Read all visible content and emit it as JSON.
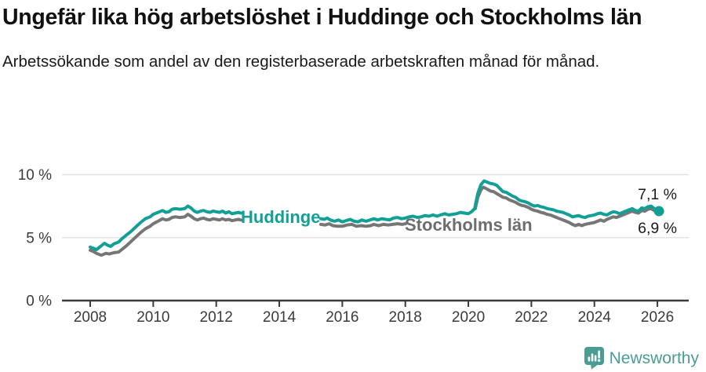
{
  "chart_data": {
    "type": "line",
    "title": "Ungefär lika hög arbetslöshet i Huddinge och Stockholms län",
    "subtitle": "Arbetssökande som andel av den registerbaserade arbetskraften månad för månad.",
    "grid": "horizontal",
    "legend_position": "inline-labels",
    "x_axis": {
      "ticks": [
        2008,
        2010,
        2012,
        2014,
        2016,
        2018,
        2020,
        2022,
        2024,
        2026
      ],
      "range": [
        2007.3,
        2027.0
      ]
    },
    "y_axis": {
      "unit": "%",
      "range": [
        0,
        10
      ],
      "ticks": [
        {
          "value": 0,
          "label": "0 %"
        },
        {
          "value": 5,
          "label": "5 %"
        },
        {
          "value": 10,
          "label": "10 %"
        }
      ]
    },
    "axis_color": "#3a3a3a",
    "grid_color": "#e3e3e3",
    "value_label_color": "#1a1a1a",
    "series": [
      {
        "name": "Huddinge",
        "color": "#12a096",
        "label_color": "#12a096",
        "end_label": "7,1 %",
        "end_value": 7.1,
        "end_dot": true,
        "segments": [
          [
            [
              2008.0,
              4.25
            ],
            [
              2008.1,
              4.15
            ],
            [
              2008.2,
              4.05
            ],
            [
              2008.3,
              4.25
            ],
            [
              2008.45,
              4.55
            ],
            [
              2008.55,
              4.4
            ],
            [
              2008.65,
              4.3
            ],
            [
              2008.75,
              4.5
            ],
            [
              2008.9,
              4.65
            ],
            [
              2009.0,
              4.9
            ],
            [
              2009.15,
              5.2
            ],
            [
              2009.3,
              5.5
            ],
            [
              2009.45,
              5.85
            ],
            [
              2009.6,
              6.2
            ],
            [
              2009.75,
              6.5
            ],
            [
              2009.9,
              6.65
            ],
            [
              2010.0,
              6.85
            ],
            [
              2010.15,
              7.0
            ],
            [
              2010.3,
              7.15
            ],
            [
              2010.4,
              7.0
            ],
            [
              2010.5,
              7.05
            ],
            [
              2010.6,
              7.25
            ],
            [
              2010.7,
              7.3
            ],
            [
              2010.85,
              7.25
            ],
            [
              2011.0,
              7.3
            ],
            [
              2011.1,
              7.5
            ],
            [
              2011.2,
              7.35
            ],
            [
              2011.3,
              7.1
            ],
            [
              2011.4,
              7.0
            ],
            [
              2011.5,
              7.1
            ],
            [
              2011.6,
              7.15
            ],
            [
              2011.7,
              7.05
            ],
            [
              2011.8,
              7.0
            ],
            [
              2011.9,
              7.1
            ],
            [
              2012.0,
              7.05
            ],
            [
              2012.1,
              7.0
            ],
            [
              2012.2,
              7.1
            ],
            [
              2012.3,
              6.95
            ],
            [
              2012.4,
              7.05
            ],
            [
              2012.5,
              6.9
            ],
            [
              2012.6,
              6.95
            ],
            [
              2012.7,
              7.0
            ],
            [
              2012.78,
              6.95
            ]
          ],
          [
            [
              2015.32,
              6.5
            ],
            [
              2015.42,
              6.45
            ],
            [
              2015.52,
              6.55
            ],
            [
              2015.62,
              6.4
            ],
            [
              2015.75,
              6.3
            ],
            [
              2015.88,
              6.4
            ],
            [
              2016.0,
              6.25
            ],
            [
              2016.12,
              6.35
            ],
            [
              2016.25,
              6.45
            ],
            [
              2016.38,
              6.3
            ],
            [
              2016.5,
              6.25
            ],
            [
              2016.62,
              6.4
            ],
            [
              2016.75,
              6.3
            ],
            [
              2016.88,
              6.4
            ],
            [
              2017.0,
              6.5
            ],
            [
              2017.12,
              6.4
            ],
            [
              2017.25,
              6.5
            ],
            [
              2017.38,
              6.45
            ],
            [
              2017.5,
              6.4
            ],
            [
              2017.62,
              6.55
            ],
            [
              2017.75,
              6.6
            ],
            [
              2017.88,
              6.5
            ],
            [
              2018.0,
              6.55
            ],
            [
              2018.12,
              6.65
            ],
            [
              2018.25,
              6.7
            ],
            [
              2018.38,
              6.6
            ],
            [
              2018.5,
              6.65
            ],
            [
              2018.62,
              6.75
            ],
            [
              2018.75,
              6.7
            ],
            [
              2018.88,
              6.8
            ],
            [
              2019.0,
              6.7
            ],
            [
              2019.12,
              6.8
            ],
            [
              2019.25,
              6.9
            ],
            [
              2019.38,
              6.8
            ],
            [
              2019.5,
              6.85
            ],
            [
              2019.62,
              6.9
            ],
            [
              2019.75,
              7.0
            ],
            [
              2019.88,
              6.95
            ],
            [
              2020.0,
              6.9
            ],
            [
              2020.1,
              7.05
            ],
            [
              2020.2,
              7.3
            ],
            [
              2020.3,
              8.5
            ],
            [
              2020.4,
              9.2
            ],
            [
              2020.5,
              9.5
            ],
            [
              2020.6,
              9.4
            ],
            [
              2020.7,
              9.3
            ],
            [
              2020.8,
              9.25
            ],
            [
              2020.9,
              9.15
            ],
            [
              2021.0,
              8.9
            ],
            [
              2021.1,
              8.65
            ],
            [
              2021.2,
              8.6
            ],
            [
              2021.3,
              8.45
            ],
            [
              2021.4,
              8.3
            ],
            [
              2021.5,
              8.2
            ],
            [
              2021.6,
              8.0
            ],
            [
              2021.7,
              7.9
            ],
            [
              2021.8,
              7.85
            ],
            [
              2021.9,
              7.75
            ],
            [
              2022.0,
              7.6
            ],
            [
              2022.1,
              7.5
            ],
            [
              2022.2,
              7.55
            ],
            [
              2022.3,
              7.45
            ],
            [
              2022.4,
              7.4
            ],
            [
              2022.5,
              7.3
            ],
            [
              2022.6,
              7.25
            ],
            [
              2022.7,
              7.2
            ],
            [
              2022.8,
              7.1
            ],
            [
              2022.9,
              7.05
            ],
            [
              2023.0,
              7.0
            ],
            [
              2023.1,
              6.9
            ],
            [
              2023.2,
              6.8
            ],
            [
              2023.3,
              6.65
            ],
            [
              2023.4,
              6.7
            ],
            [
              2023.5,
              6.75
            ],
            [
              2023.6,
              6.65
            ],
            [
              2023.7,
              6.6
            ],
            [
              2023.8,
              6.7
            ],
            [
              2023.9,
              6.75
            ],
            [
              2024.0,
              6.8
            ],
            [
              2024.1,
              6.9
            ],
            [
              2024.2,
              6.95
            ],
            [
              2024.3,
              6.85
            ],
            [
              2024.4,
              6.8
            ],
            [
              2024.5,
              6.95
            ],
            [
              2024.6,
              7.05
            ],
            [
              2024.7,
              7.0
            ],
            [
              2024.8,
              6.9
            ],
            [
              2024.9,
              7.0
            ],
            [
              2025.0,
              7.1
            ],
            [
              2025.1,
              7.2
            ],
            [
              2025.2,
              7.3
            ],
            [
              2025.3,
              7.15
            ],
            [
              2025.4,
              7.1
            ],
            [
              2025.5,
              7.35
            ],
            [
              2025.6,
              7.3
            ],
            [
              2025.7,
              7.45
            ],
            [
              2025.8,
              7.5
            ],
            [
              2025.9,
              7.3
            ],
            [
              2026.05,
              7.1
            ]
          ]
        ]
      },
      {
        "name": "Stockholms län",
        "color": "#767676",
        "label_color": "#6d6d6d",
        "end_label": "6,9 %",
        "end_value": 6.9,
        "end_dot": false,
        "segments": [
          [
            [
              2008.0,
              4.0
            ],
            [
              2008.1,
              3.9
            ],
            [
              2008.2,
              3.75
            ],
            [
              2008.35,
              3.6
            ],
            [
              2008.5,
              3.75
            ],
            [
              2008.6,
              3.7
            ],
            [
              2008.75,
              3.8
            ],
            [
              2008.9,
              3.85
            ],
            [
              2009.0,
              4.05
            ],
            [
              2009.15,
              4.35
            ],
            [
              2009.3,
              4.7
            ],
            [
              2009.45,
              5.05
            ],
            [
              2009.6,
              5.4
            ],
            [
              2009.75,
              5.7
            ],
            [
              2009.9,
              5.9
            ],
            [
              2010.0,
              6.1
            ],
            [
              2010.15,
              6.3
            ],
            [
              2010.3,
              6.5
            ],
            [
              2010.4,
              6.4
            ],
            [
              2010.5,
              6.45
            ],
            [
              2010.6,
              6.6
            ],
            [
              2010.7,
              6.65
            ],
            [
              2010.85,
              6.6
            ],
            [
              2011.0,
              6.65
            ],
            [
              2011.1,
              6.85
            ],
            [
              2011.2,
              6.7
            ],
            [
              2011.3,
              6.5
            ],
            [
              2011.4,
              6.4
            ],
            [
              2011.5,
              6.5
            ],
            [
              2011.6,
              6.55
            ],
            [
              2011.7,
              6.45
            ],
            [
              2011.8,
              6.4
            ],
            [
              2011.9,
              6.5
            ],
            [
              2012.0,
              6.45
            ],
            [
              2012.1,
              6.4
            ],
            [
              2012.2,
              6.5
            ],
            [
              2012.3,
              6.4
            ],
            [
              2012.4,
              6.45
            ],
            [
              2012.5,
              6.35
            ],
            [
              2012.6,
              6.4
            ],
            [
              2012.7,
              6.45
            ],
            [
              2012.78,
              6.4
            ]
          ],
          [
            [
              2015.32,
              6.05
            ],
            [
              2015.45,
              6.0
            ],
            [
              2015.58,
              6.1
            ],
            [
              2015.7,
              5.95
            ],
            [
              2015.85,
              5.9
            ],
            [
              2016.0,
              5.9
            ],
            [
              2016.15,
              6.0
            ],
            [
              2016.3,
              6.05
            ],
            [
              2016.45,
              5.9
            ],
            [
              2016.6,
              5.95
            ],
            [
              2016.75,
              5.9
            ],
            [
              2016.9,
              5.95
            ],
            [
              2017.0,
              6.05
            ],
            [
              2017.15,
              5.95
            ],
            [
              2017.3,
              6.05
            ],
            [
              2017.45,
              6.0
            ],
            [
              2017.6,
              6.05
            ],
            [
              2017.75,
              6.1
            ],
            [
              2017.9,
              6.05
            ],
            [
              2018.0,
              6.1
            ]
          ],
          [
            [
              2020.22,
              7.3
            ],
            [
              2020.3,
              8.2
            ],
            [
              2020.4,
              8.8
            ],
            [
              2020.48,
              9.0
            ],
            [
              2020.6,
              8.85
            ],
            [
              2020.7,
              8.7
            ],
            [
              2020.8,
              8.65
            ],
            [
              2020.9,
              8.5
            ],
            [
              2021.0,
              8.35
            ],
            [
              2021.1,
              8.2
            ],
            [
              2021.2,
              8.15
            ],
            [
              2021.3,
              8.0
            ],
            [
              2021.4,
              7.9
            ],
            [
              2021.5,
              7.8
            ],
            [
              2021.6,
              7.65
            ],
            [
              2021.7,
              7.55
            ],
            [
              2021.8,
              7.5
            ],
            [
              2021.9,
              7.4
            ],
            [
              2022.0,
              7.25
            ],
            [
              2022.1,
              7.15
            ],
            [
              2022.2,
              7.1
            ],
            [
              2022.3,
              7.0
            ],
            [
              2022.4,
              6.95
            ],
            [
              2022.5,
              6.85
            ],
            [
              2022.6,
              6.8
            ],
            [
              2022.7,
              6.7
            ],
            [
              2022.8,
              6.6
            ],
            [
              2022.9,
              6.5
            ],
            [
              2023.0,
              6.4
            ],
            [
              2023.1,
              6.3
            ],
            [
              2023.2,
              6.2
            ],
            [
              2023.3,
              6.05
            ],
            [
              2023.4,
              5.95
            ],
            [
              2023.5,
              6.05
            ],
            [
              2023.6,
              5.95
            ],
            [
              2023.7,
              6.05
            ],
            [
              2023.8,
              6.1
            ],
            [
              2023.9,
              6.15
            ],
            [
              2024.0,
              6.2
            ],
            [
              2024.1,
              6.3
            ],
            [
              2024.2,
              6.4
            ],
            [
              2024.3,
              6.3
            ],
            [
              2024.4,
              6.45
            ],
            [
              2024.5,
              6.55
            ],
            [
              2024.6,
              6.65
            ],
            [
              2024.7,
              6.6
            ],
            [
              2024.8,
              6.7
            ],
            [
              2024.9,
              6.8
            ],
            [
              2025.0,
              6.9
            ],
            [
              2025.1,
              7.0
            ],
            [
              2025.2,
              7.1
            ],
            [
              2025.3,
              7.0
            ],
            [
              2025.4,
              6.95
            ],
            [
              2025.5,
              7.15
            ],
            [
              2025.6,
              7.1
            ],
            [
              2025.7,
              7.25
            ],
            [
              2025.8,
              7.3
            ],
            [
              2025.9,
              7.15
            ],
            [
              2026.05,
              6.9
            ]
          ]
        ]
      }
    ]
  },
  "footer": {
    "brand": "Newsworthy",
    "brand_color": "#4c9c96",
    "logo_icon": "newsworthy-speech-bubble-barchart-icon"
  }
}
